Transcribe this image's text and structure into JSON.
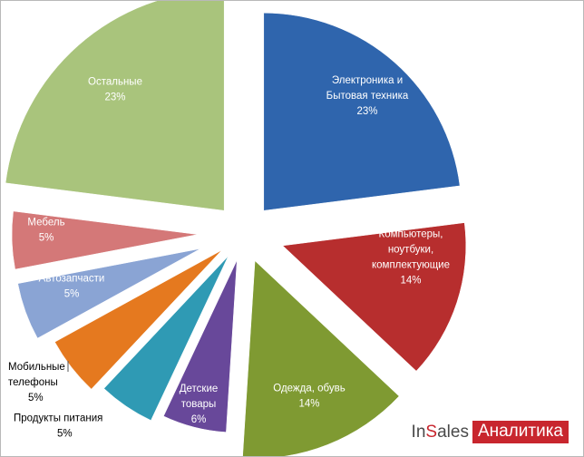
{
  "chart_data": {
    "type": "pie",
    "title": "",
    "slices": [
      {
        "label": [
          "Электроника и",
          "Бытовая техника"
        ],
        "percent_label": "23%",
        "value": 23,
        "color": "#2f65ad"
      },
      {
        "label": [
          "Компьютеры,",
          "ноутбуки,",
          "комплектующие"
        ],
        "percent_label": "14%",
        "value": 14,
        "color": "#b72e2e"
      },
      {
        "label": [
          "Одежда, обувь"
        ],
        "percent_label": "14%",
        "value": 14,
        "color": "#7f9a32"
      },
      {
        "label": [
          "Детские",
          "товары"
        ],
        "percent_label": "6%",
        "value": 6,
        "color": "#68489a"
      },
      {
        "label": [
          "Продукты питания"
        ],
        "percent_label": "5%",
        "value": 5,
        "color": "#2f9ab4"
      },
      {
        "label": [
          "Мобильные",
          "телефоны"
        ],
        "percent_label": "5%",
        "value": 5,
        "color": "#e5791f"
      },
      {
        "label": [
          "Автозапчасти"
        ],
        "percent_label": "5%",
        "value": 5,
        "color": "#8aa4d4"
      },
      {
        "label": [
          "Мебель"
        ],
        "percent_label": "5%",
        "value": 5,
        "color": "#d47878"
      },
      {
        "label": [
          "Остальные"
        ],
        "percent_label": "23%",
        "value": 23,
        "color": "#a9c47c"
      }
    ]
  },
  "logo": {
    "brand_part1": "In",
    "brand_s": "S",
    "brand_part2": "ales",
    "badge": "Аналитика"
  }
}
